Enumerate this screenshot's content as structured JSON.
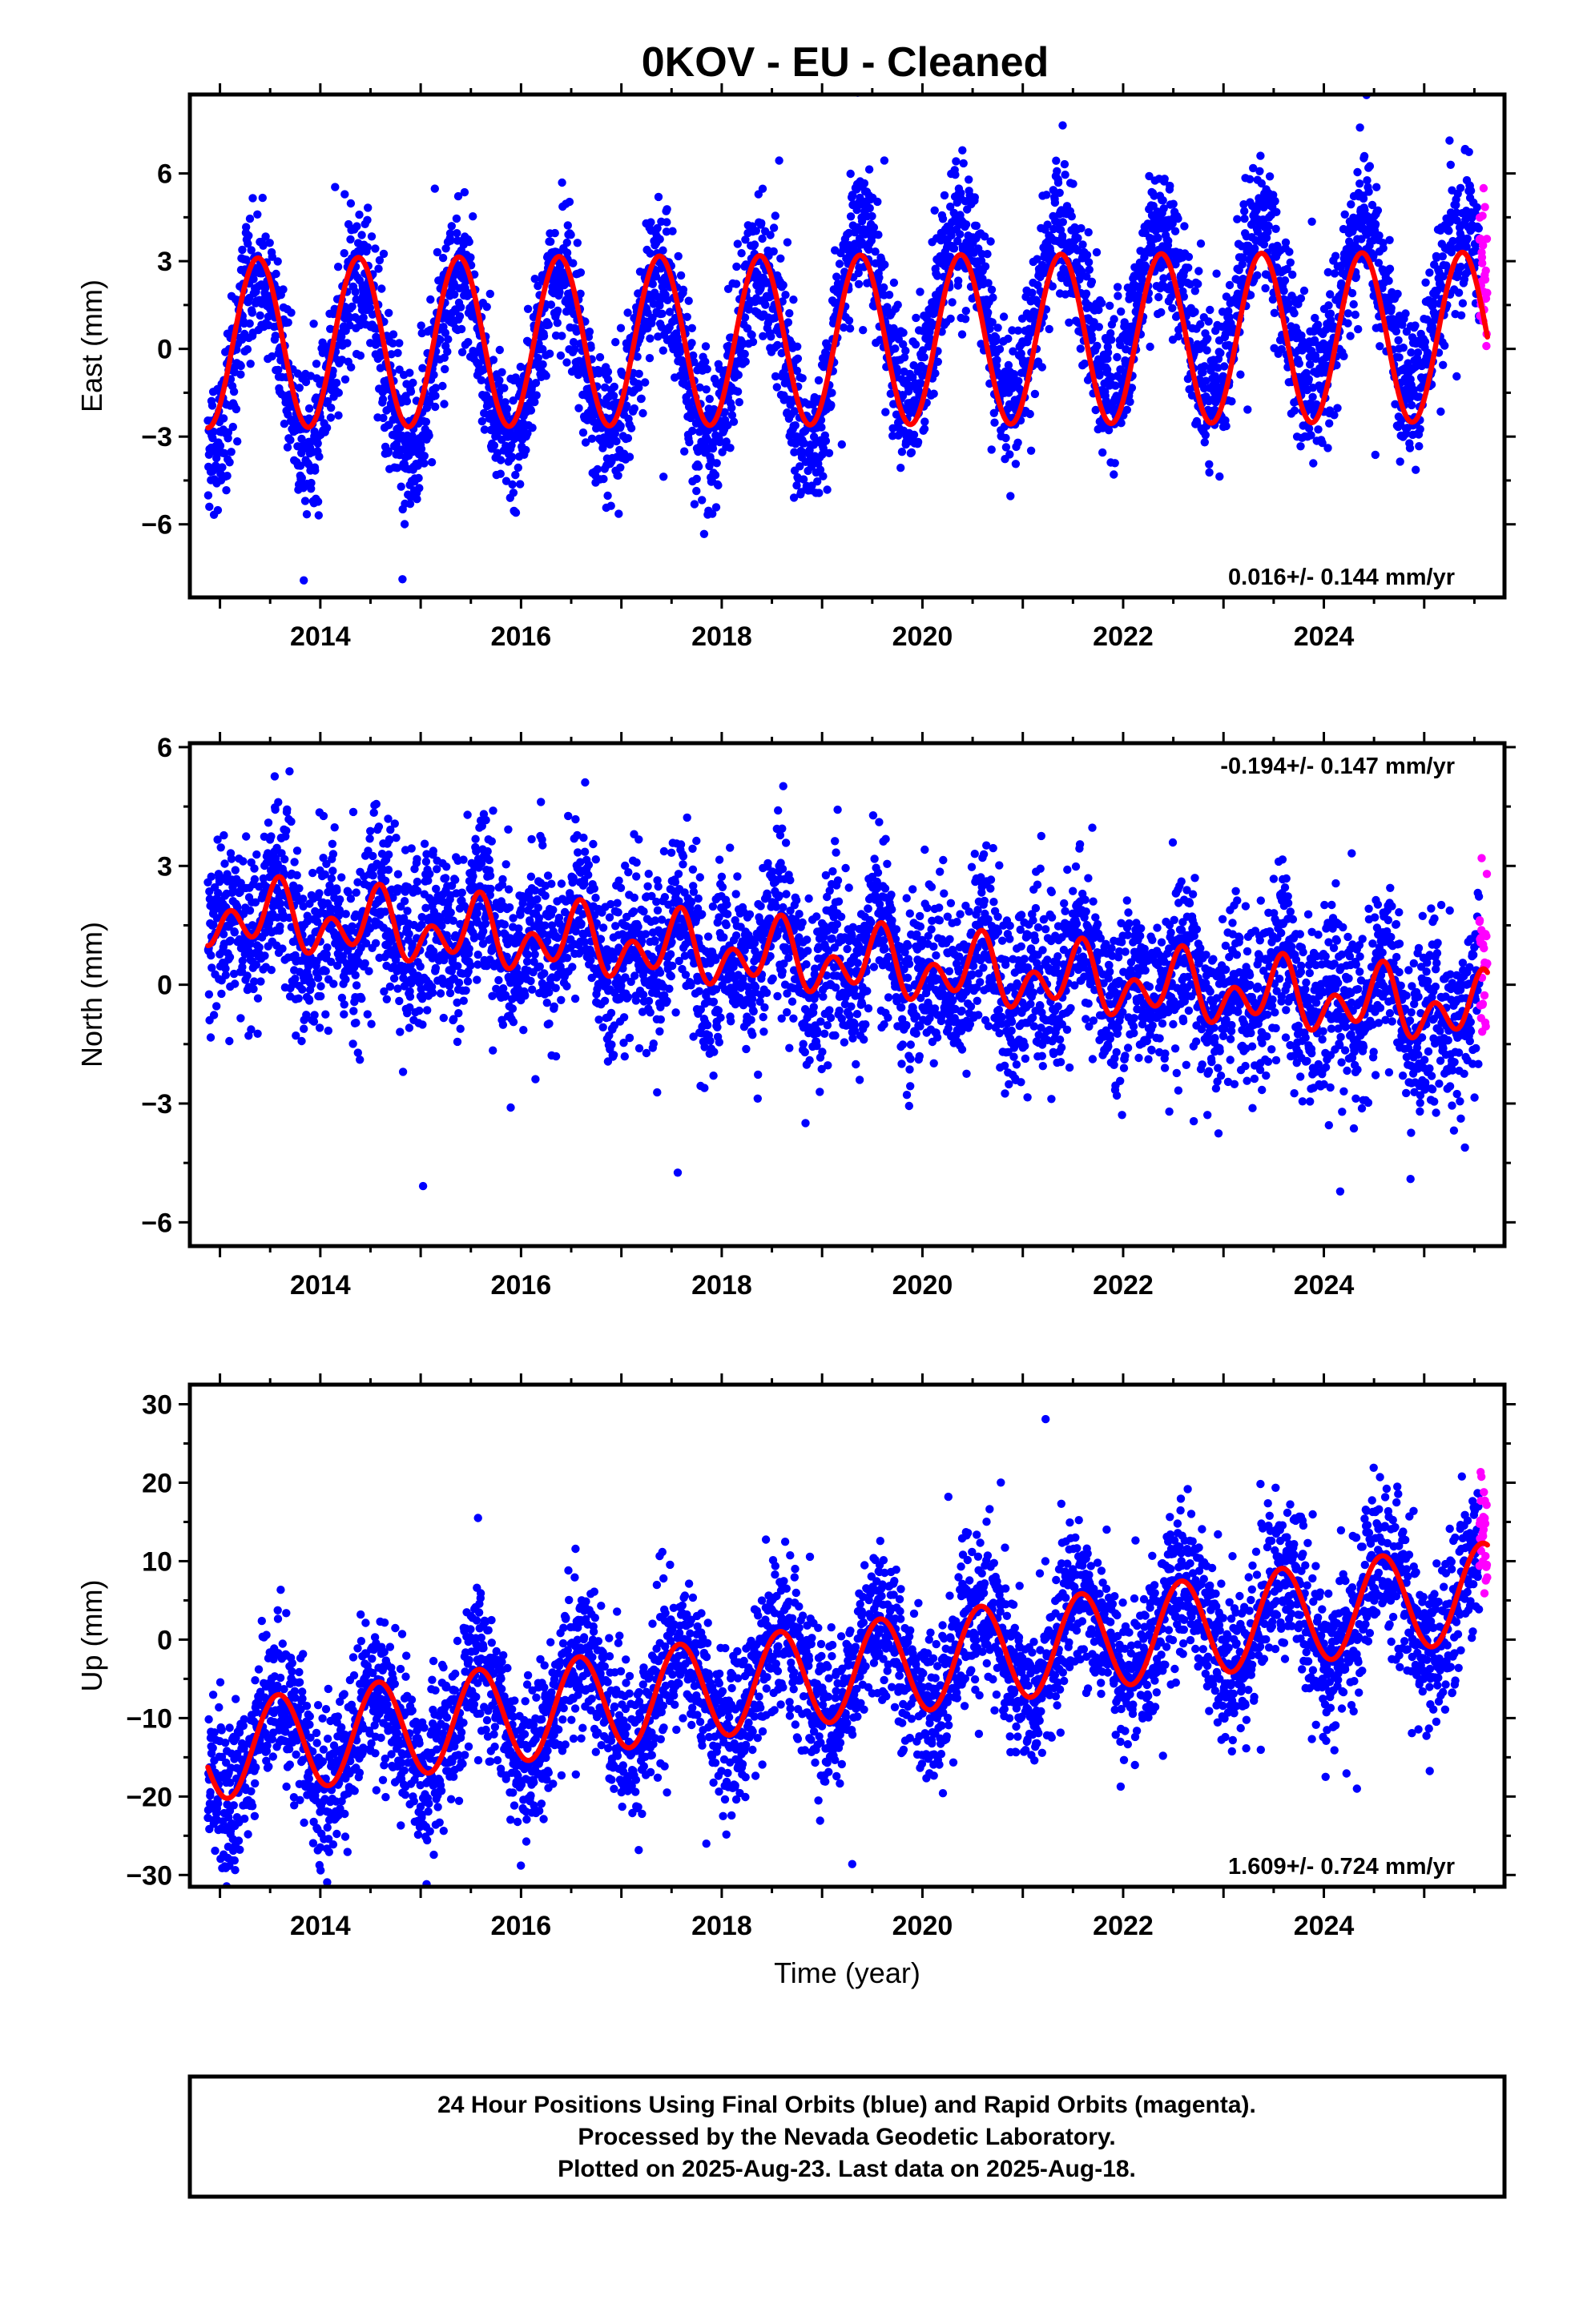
{
  "title": "0KOV  - EU - Cleaned",
  "footer": {
    "line1": "24 Hour Positions Using Final Orbits (blue) and Rapid Orbits (magenta).",
    "line2": "Processed by the Nevada Geodetic Laboratory.",
    "line3": "Plotted on 2025-Aug-23. Last data on 2025-Aug-18."
  },
  "colors": {
    "final_orbits": "#0000ff",
    "rapid_orbits": "#ff00ff",
    "model_fit": "#ff0000",
    "frame": "#000000"
  },
  "chart_data": [
    {
      "type": "scatter",
      "panel": "east",
      "ylabel": "East (mm)",
      "xlabel": "",
      "xlim": [
        2012.7,
        2025.8
      ],
      "ylim": [
        -8.5,
        8.7
      ],
      "yticks": [
        -6,
        -3,
        0,
        3,
        6
      ],
      "xticks": [
        2014,
        2016,
        2018,
        2020,
        2022,
        2024
      ],
      "grid": false,
      "rate_text": "0.016+/- 0.144 mm/yr",
      "rate_position": "bottom-right",
      "data_start": 2012.88,
      "final_end": 2025.55,
      "data_end": 2025.63,
      "noise_sd": 1.25,
      "model": {
        "trend_mm_per_yr": 0.016,
        "offset_mm": 0.3,
        "annual_amp": 2.9,
        "annual_phase_peak": 0.38,
        "semiannual_amp": 0.0,
        "semiannual_phase_peak": 0.0
      },
      "series": [
        {
          "name": "Final Orbits (blue)",
          "role": "final",
          "trend_shift": {
            "start": 2019.1,
            "mm": 1.2
          }
        },
        {
          "name": "Rapid Orbits (magenta)",
          "role": "rapid"
        }
      ]
    },
    {
      "type": "scatter",
      "panel": "north",
      "ylabel": "North (mm)",
      "xlabel": "",
      "xlim": [
        2012.7,
        2025.8
      ],
      "ylim": [
        -6.6,
        6.1
      ],
      "yticks": [
        -6,
        -3,
        0,
        3,
        6
      ],
      "xticks": [
        2014,
        2016,
        2018,
        2020,
        2022,
        2024
      ],
      "grid": false,
      "rate_text": "-0.194+/- 0.147 mm/yr",
      "rate_position": "top-right",
      "data_start": 2012.88,
      "final_end": 2025.55,
      "data_end": 2025.63,
      "noise_sd": 1.1,
      "model": {
        "trend_mm_per_yr": -0.194,
        "offset_mm": 0.6,
        "annual_amp": 0.5,
        "annual_phase_peak": 0.55,
        "semiannual_amp": 0.6,
        "semiannual_phase_peak": 0.1
      },
      "series": [
        {
          "name": "Final Orbits (blue)",
          "role": "final"
        },
        {
          "name": "Rapid Orbits (magenta)",
          "role": "rapid"
        }
      ]
    },
    {
      "type": "scatter",
      "panel": "up",
      "ylabel": "Up (mm)",
      "xlabel": "Time (year)",
      "xlim": [
        2012.7,
        2025.8
      ],
      "ylim": [
        -31.5,
        32.5
      ],
      "yticks": [
        -30,
        -20,
        -10,
        0,
        10,
        20,
        30
      ],
      "xticks": [
        2014,
        2016,
        2018,
        2020,
        2022,
        2024
      ],
      "grid": false,
      "rate_text": "1.609+/- 0.724 mm/yr",
      "rate_position": "bottom-right",
      "data_start": 2012.88,
      "final_end": 2025.55,
      "data_end": 2025.63,
      "noise_sd": 5.0,
      "model": {
        "trend_mm_per_yr": 1.609,
        "offset_mm": -4.5,
        "annual_amp": 6.2,
        "annual_phase_peak": 0.58,
        "semiannual_amp": 0.0,
        "semiannual_phase_peak": 0.0
      },
      "series": [
        {
          "name": "Final Orbits (blue)",
          "role": "final"
        },
        {
          "name": "Rapid Orbits (magenta)",
          "role": "rapid"
        }
      ]
    }
  ]
}
